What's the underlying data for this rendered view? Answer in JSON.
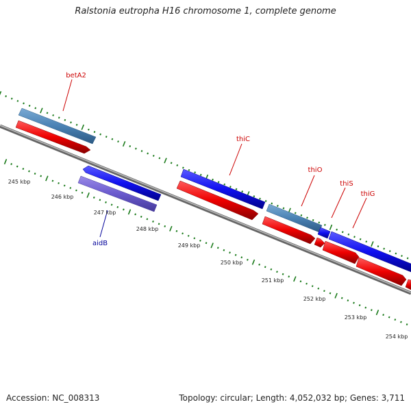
{
  "title": "Ralstonia eutropha H16 chromosome 1, complete genome",
  "footer": {
    "accession": "Accession: NC_008313",
    "summary": "Topology: circular; Length: 4,052,032 bp; Genes: 3,711"
  },
  "scale_labels": [
    "245 kbp",
    "246 kbp",
    "247 kbp",
    "248 kbp",
    "249 kbp",
    "250 kbp",
    "251 kbp",
    "252 kbp",
    "253 kbp",
    "254 kbp"
  ],
  "gene_labels": {
    "betA2": "betA2",
    "aidB": "aidB",
    "thiC": "thiC",
    "thiO": "thiO",
    "thiS": "thiS",
    "thiG": "thiG"
  },
  "colors": {
    "label_forward": "#cc0000",
    "label_reverse": "#000099",
    "gene_blue": "#1a1ae6",
    "gene_steel": "#4a82b4",
    "gene_red": "#e60000",
    "gene_purple": "#6a5acd",
    "backbone": "#808080",
    "tick": "#1a7a1a"
  }
}
